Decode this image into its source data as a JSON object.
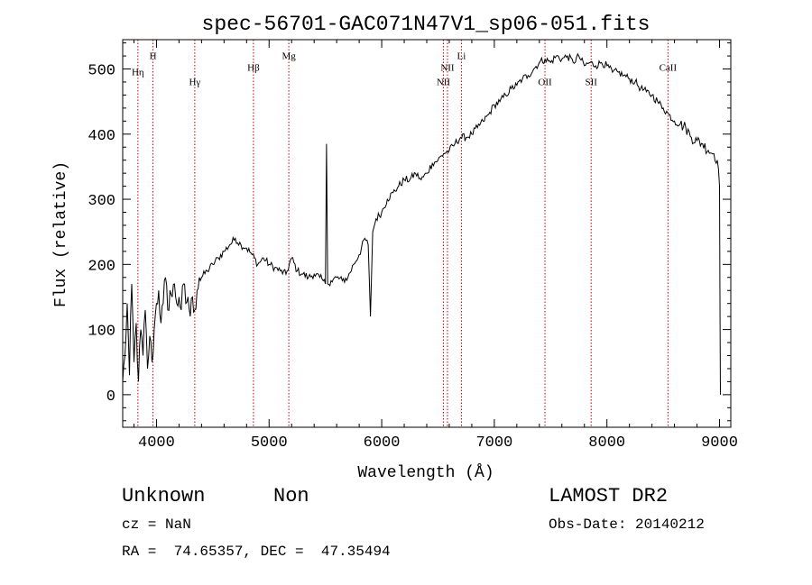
{
  "chart_data": {
    "type": "line",
    "title": "spec-56701-GAC071N47V1_sp06-051.fits",
    "xlabel": "Wavelength (Å)",
    "ylabel": "Flux (relative)",
    "xlim": [
      3700,
      9100
    ],
    "ylim": [
      -50,
      545
    ],
    "grid": false,
    "x_ticks": [
      "4000",
      "5000",
      "6000",
      "7000",
      "8000",
      "9000"
    ],
    "y_ticks": [
      "0",
      "100",
      "200",
      "300",
      "400",
      "500"
    ],
    "series": [
      {
        "color": "#000000",
        "points": [
          [
            3700,
            20
          ],
          [
            3720,
            60
          ],
          [
            3740,
            140
          ],
          [
            3760,
            30
          ],
          [
            3780,
            170
          ],
          [
            3800,
            50
          ],
          [
            3820,
            110
          ],
          [
            3840,
            20
          ],
          [
            3860,
            100
          ],
          [
            3880,
            60
          ],
          [
            3900,
            130
          ],
          [
            3920,
            40
          ],
          [
            3940,
            90
          ],
          [
            3960,
            50
          ],
          [
            3980,
            100
          ],
          [
            4000,
            140
          ],
          [
            4020,
            160
          ],
          [
            4040,
            110
          ],
          [
            4060,
            140
          ],
          [
            4080,
            180
          ],
          [
            4100,
            130
          ],
          [
            4120,
            160
          ],
          [
            4140,
            150
          ],
          [
            4160,
            170
          ],
          [
            4180,
            140
          ],
          [
            4200,
            150
          ],
          [
            4220,
            130
          ],
          [
            4240,
            170
          ],
          [
            4260,
            140
          ],
          [
            4280,
            150
          ],
          [
            4300,
            120
          ],
          [
            4320,
            150
          ],
          [
            4340,
            130
          ],
          [
            4360,
            160
          ],
          [
            4380,
            180
          ],
          [
            4400,
            180
          ],
          [
            4450,
            190
          ],
          [
            4500,
            200
          ],
          [
            4550,
            210
          ],
          [
            4600,
            220
          ],
          [
            4650,
            230
          ],
          [
            4700,
            240
          ],
          [
            4750,
            230
          ],
          [
            4800,
            225
          ],
          [
            4850,
            215
          ],
          [
            4900,
            200
          ],
          [
            4950,
            210
          ],
          [
            5000,
            200
          ],
          [
            5050,
            195
          ],
          [
            5100,
            190
          ],
          [
            5150,
            185
          ],
          [
            5200,
            210
          ],
          [
            5250,
            190
          ],
          [
            5300,
            185
          ],
          [
            5350,
            180
          ],
          [
            5400,
            185
          ],
          [
            5450,
            180
          ],
          [
            5480,
            175
          ],
          [
            5500,
            170
          ],
          [
            5510,
            385
          ],
          [
            5520,
            170
          ],
          [
            5550,
            175
          ],
          [
            5600,
            180
          ],
          [
            5650,
            175
          ],
          [
            5700,
            180
          ],
          [
            5750,
            200
          ],
          [
            5800,
            215
          ],
          [
            5850,
            240
          ],
          [
            5880,
            230
          ],
          [
            5900,
            120
          ],
          [
            5920,
            250
          ],
          [
            5950,
            270
          ],
          [
            6000,
            280
          ],
          [
            6050,
            300
          ],
          [
            6100,
            310
          ],
          [
            6150,
            320
          ],
          [
            6200,
            330
          ],
          [
            6250,
            330
          ],
          [
            6300,
            340
          ],
          [
            6350,
            330
          ],
          [
            6400,
            340
          ],
          [
            6450,
            355
          ],
          [
            6500,
            360
          ],
          [
            6550,
            370
          ],
          [
            6600,
            375
          ],
          [
            6650,
            385
          ],
          [
            6700,
            395
          ],
          [
            6750,
            395
          ],
          [
            6800,
            400
          ],
          [
            6850,
            410
          ],
          [
            6900,
            420
          ],
          [
            6950,
            430
          ],
          [
            7000,
            445
          ],
          [
            7050,
            450
          ],
          [
            7100,
            460
          ],
          [
            7150,
            470
          ],
          [
            7200,
            475
          ],
          [
            7250,
            485
          ],
          [
            7300,
            490
          ],
          [
            7350,
            500
          ],
          [
            7400,
            510
          ],
          [
            7450,
            515
          ],
          [
            7500,
            510
          ],
          [
            7550,
            520
          ],
          [
            7600,
            515
          ],
          [
            7650,
            520
          ],
          [
            7700,
            510
          ],
          [
            7750,
            520
          ],
          [
            7800,
            505
          ],
          [
            7850,
            510
          ],
          [
            7900,
            505
          ],
          [
            7950,
            510
          ],
          [
            8000,
            505
          ],
          [
            8050,
            495
          ],
          [
            8100,
            495
          ],
          [
            8150,
            490
          ],
          [
            8200,
            485
          ],
          [
            8250,
            480
          ],
          [
            8300,
            470
          ],
          [
            8350,
            465
          ],
          [
            8400,
            460
          ],
          [
            8450,
            450
          ],
          [
            8500,
            440
          ],
          [
            8550,
            430
          ],
          [
            8600,
            420
          ],
          [
            8650,
            415
          ],
          [
            8700,
            410
          ],
          [
            8750,
            395
          ],
          [
            8800,
            390
          ],
          [
            8850,
            385
          ],
          [
            8900,
            375
          ],
          [
            8950,
            370
          ],
          [
            8980,
            360
          ],
          [
            9000,
            320
          ],
          [
            9005,
            110
          ],
          [
            9008,
            0
          ]
        ]
      }
    ],
    "lines": [
      {
        "label": "Hη",
        "x": 3835,
        "y": 490
      },
      {
        "label": "H",
        "x": 3969,
        "y": 515
      },
      {
        "label": "Hγ",
        "x": 4340,
        "y": 475
      },
      {
        "label": "Hβ",
        "x": 4861,
        "y": 497
      },
      {
        "label": "Mg",
        "x": 5175,
        "y": 515
      },
      {
        "label": "NII",
        "x": 6548,
        "y": 475
      },
      {
        "label": "NII",
        "x": 6584,
        "y": 497
      },
      {
        "label": "Li",
        "x": 6708,
        "y": 515
      },
      {
        "label": "OII",
        "x": 7450,
        "y": 475
      },
      {
        "label": "SII",
        "x": 7860,
        "y": 475
      },
      {
        "label": "CaII",
        "x": 8542,
        "y": 497
      }
    ]
  },
  "info": {
    "class_label": "Unknown",
    "subclass_label": "Non",
    "survey": "LAMOST DR2",
    "cz": "cz = NaN",
    "obs_date": "Obs-Date: 20140212",
    "coords": "RA =  74.65357, DEC =  47.35494"
  }
}
